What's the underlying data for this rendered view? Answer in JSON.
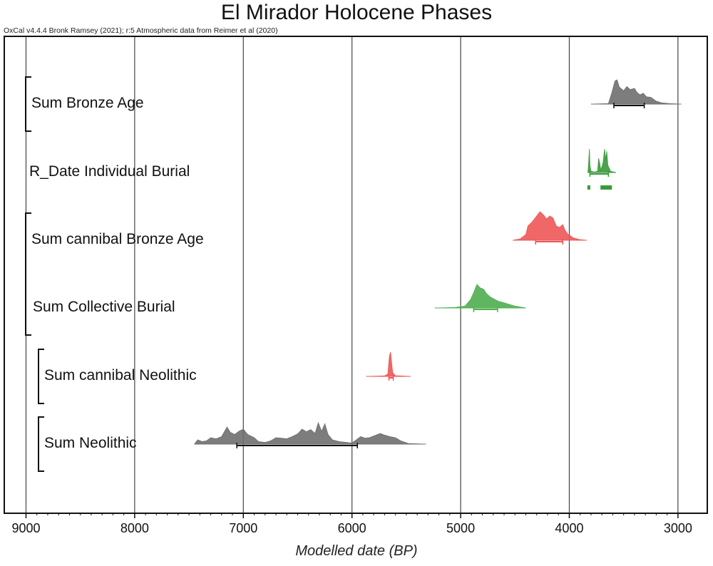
{
  "chart_data": {
    "type": "area",
    "title": "El Mirador Holocene Phases",
    "subtitle": "OxCal v4.4.4 Bronk Ramsey (2021); r:5 Atmospheric data from Reimer et al (2020)",
    "xlabel": "Modelled date (BP)",
    "xlim": [
      9200,
      2730
    ],
    "x_reversed": true,
    "x_ticks": [
      9000,
      8000,
      7000,
      6000,
      5000,
      4000,
      3000
    ],
    "grid": true,
    "groups": [
      {
        "rows": [
          "Sum Bronze Age"
        ]
      },
      {
        "rows": [
          "Sum cannibal Bronze Age",
          "Sum Collective Burial"
        ]
      },
      {
        "rows": [
          "Sum cannibal Neolithic"
        ]
      },
      {
        "rows": [
          "Sum Neolithic"
        ]
      }
    ],
    "series": [
      {
        "name": "Sum Bronze Age",
        "color": "#6f6f6f",
        "range": [
          3800,
          2970
        ],
        "interval": [
          3590,
          3310
        ],
        "profile": [
          [
            3800,
            0
          ],
          [
            3640,
            0.02
          ],
          [
            3610,
            0.45
          ],
          [
            3580,
            0.95
          ],
          [
            3560,
            1.0
          ],
          [
            3540,
            0.7
          ],
          [
            3500,
            0.55
          ],
          [
            3470,
            0.72
          ],
          [
            3440,
            0.6
          ],
          [
            3400,
            0.65
          ],
          [
            3380,
            0.5
          ],
          [
            3350,
            0.38
          ],
          [
            3320,
            0.45
          ],
          [
            3290,
            0.3
          ],
          [
            3250,
            0.28
          ],
          [
            3200,
            0.12
          ],
          [
            3150,
            0.05
          ],
          [
            3080,
            0.02
          ],
          [
            2970,
            0
          ]
        ]
      },
      {
        "name": "R_Date Individual Burial",
        "color": "#3a9a3a",
        "range": [
          3830,
          3570
        ],
        "interval": [
          3810,
          3640
        ],
        "profile": [
          [
            3830,
            0
          ],
          [
            3825,
            0.2
          ],
          [
            3815,
            1.0
          ],
          [
            3810,
            0.3
          ],
          [
            3800,
            0.05
          ],
          [
            3770,
            0.02
          ],
          [
            3740,
            0.05
          ],
          [
            3730,
            0.6
          ],
          [
            3720,
            0.4
          ],
          [
            3710,
            0.1
          ],
          [
            3690,
            0.4
          ],
          [
            3675,
            1.0
          ],
          [
            3665,
            0.55
          ],
          [
            3655,
            0.9
          ],
          [
            3645,
            0.3
          ],
          [
            3620,
            0.05
          ],
          [
            3570,
            0
          ]
        ]
      },
      {
        "name": "Sum cannibal Bronze Age",
        "color": "#ee5656",
        "range": [
          4520,
          3840
        ],
        "interval": [
          4310,
          4060
        ],
        "profile": [
          [
            4520,
            0
          ],
          [
            4450,
            0.05
          ],
          [
            4400,
            0.2
          ],
          [
            4380,
            0.5
          ],
          [
            4340,
            0.65
          ],
          [
            4300,
            0.85
          ],
          [
            4270,
            1.0
          ],
          [
            4240,
            0.9
          ],
          [
            4210,
            0.75
          ],
          [
            4180,
            0.85
          ],
          [
            4150,
            0.78
          ],
          [
            4120,
            0.5
          ],
          [
            4090,
            0.45
          ],
          [
            4060,
            0.55
          ],
          [
            4040,
            0.35
          ],
          [
            4010,
            0.2
          ],
          [
            3960,
            0.08
          ],
          [
            3900,
            0.02
          ],
          [
            3840,
            0
          ]
        ]
      },
      {
        "name": "Sum Collective Burial",
        "color": "#4fae4f",
        "range": [
          5240,
          4400
        ],
        "interval": [
          4880,
          4660
        ],
        "profile": [
          [
            5240,
            0
          ],
          [
            5050,
            0.02
          ],
          [
            4960,
            0.08
          ],
          [
            4910,
            0.35
          ],
          [
            4880,
            0.65
          ],
          [
            4850,
            1.0
          ],
          [
            4820,
            0.85
          ],
          [
            4790,
            0.8
          ],
          [
            4760,
            0.6
          ],
          [
            4730,
            0.48
          ],
          [
            4700,
            0.4
          ],
          [
            4650,
            0.28
          ],
          [
            4600,
            0.22
          ],
          [
            4550,
            0.15
          ],
          [
            4500,
            0.08
          ],
          [
            4400,
            0
          ]
        ]
      },
      {
        "name": "Sum cannibal Neolithic",
        "color": "#ee5656",
        "range": [
          5870,
          5460
        ],
        "interval": [
          5660,
          5620
        ],
        "profile": [
          [
            5870,
            0
          ],
          [
            5700,
            0.02
          ],
          [
            5670,
            0.1
          ],
          [
            5655,
            0.85
          ],
          [
            5645,
            1.0
          ],
          [
            5635,
            0.55
          ],
          [
            5625,
            0.15
          ],
          [
            5600,
            0.03
          ],
          [
            5460,
            0
          ]
        ]
      },
      {
        "name": "Sum Neolithic",
        "color": "#6f6f6f",
        "range": [
          7450,
          5320
        ],
        "interval": [
          7060,
          5950
        ],
        "profile": [
          [
            7450,
            0
          ],
          [
            7420,
            0.2
          ],
          [
            7380,
            0.12
          ],
          [
            7340,
            0.15
          ],
          [
            7300,
            0.3
          ],
          [
            7250,
            0.25
          ],
          [
            7200,
            0.35
          ],
          [
            7150,
            0.8
          ],
          [
            7120,
            0.55
          ],
          [
            7080,
            0.45
          ],
          [
            7040,
            0.6
          ],
          [
            7000,
            0.7
          ],
          [
            6960,
            0.45
          ],
          [
            6900,
            0.3
          ],
          [
            6860,
            0.12
          ],
          [
            6800,
            0.08
          ],
          [
            6750,
            0.15
          ],
          [
            6700,
            0.3
          ],
          [
            6650,
            0.28
          ],
          [
            6600,
            0.25
          ],
          [
            6550,
            0.35
          ],
          [
            6500,
            0.48
          ],
          [
            6460,
            0.7
          ],
          [
            6420,
            0.58
          ],
          [
            6380,
            0.68
          ],
          [
            6340,
            0.5
          ],
          [
            6310,
            1.0
          ],
          [
            6280,
            0.6
          ],
          [
            6250,
            0.95
          ],
          [
            6220,
            0.45
          ],
          [
            6180,
            0.2
          ],
          [
            6120,
            0.12
          ],
          [
            6050,
            0.08
          ],
          [
            6000,
            0.05
          ],
          [
            5960,
            0.2
          ],
          [
            5920,
            0.35
          ],
          [
            5880,
            0.28
          ],
          [
            5840,
            0.3
          ],
          [
            5800,
            0.38
          ],
          [
            5740,
            0.5
          ],
          [
            5700,
            0.42
          ],
          [
            5650,
            0.35
          ],
          [
            5600,
            0.3
          ],
          [
            5550,
            0.15
          ],
          [
            5480,
            0.03
          ],
          [
            5320,
            0
          ]
        ]
      }
    ]
  }
}
